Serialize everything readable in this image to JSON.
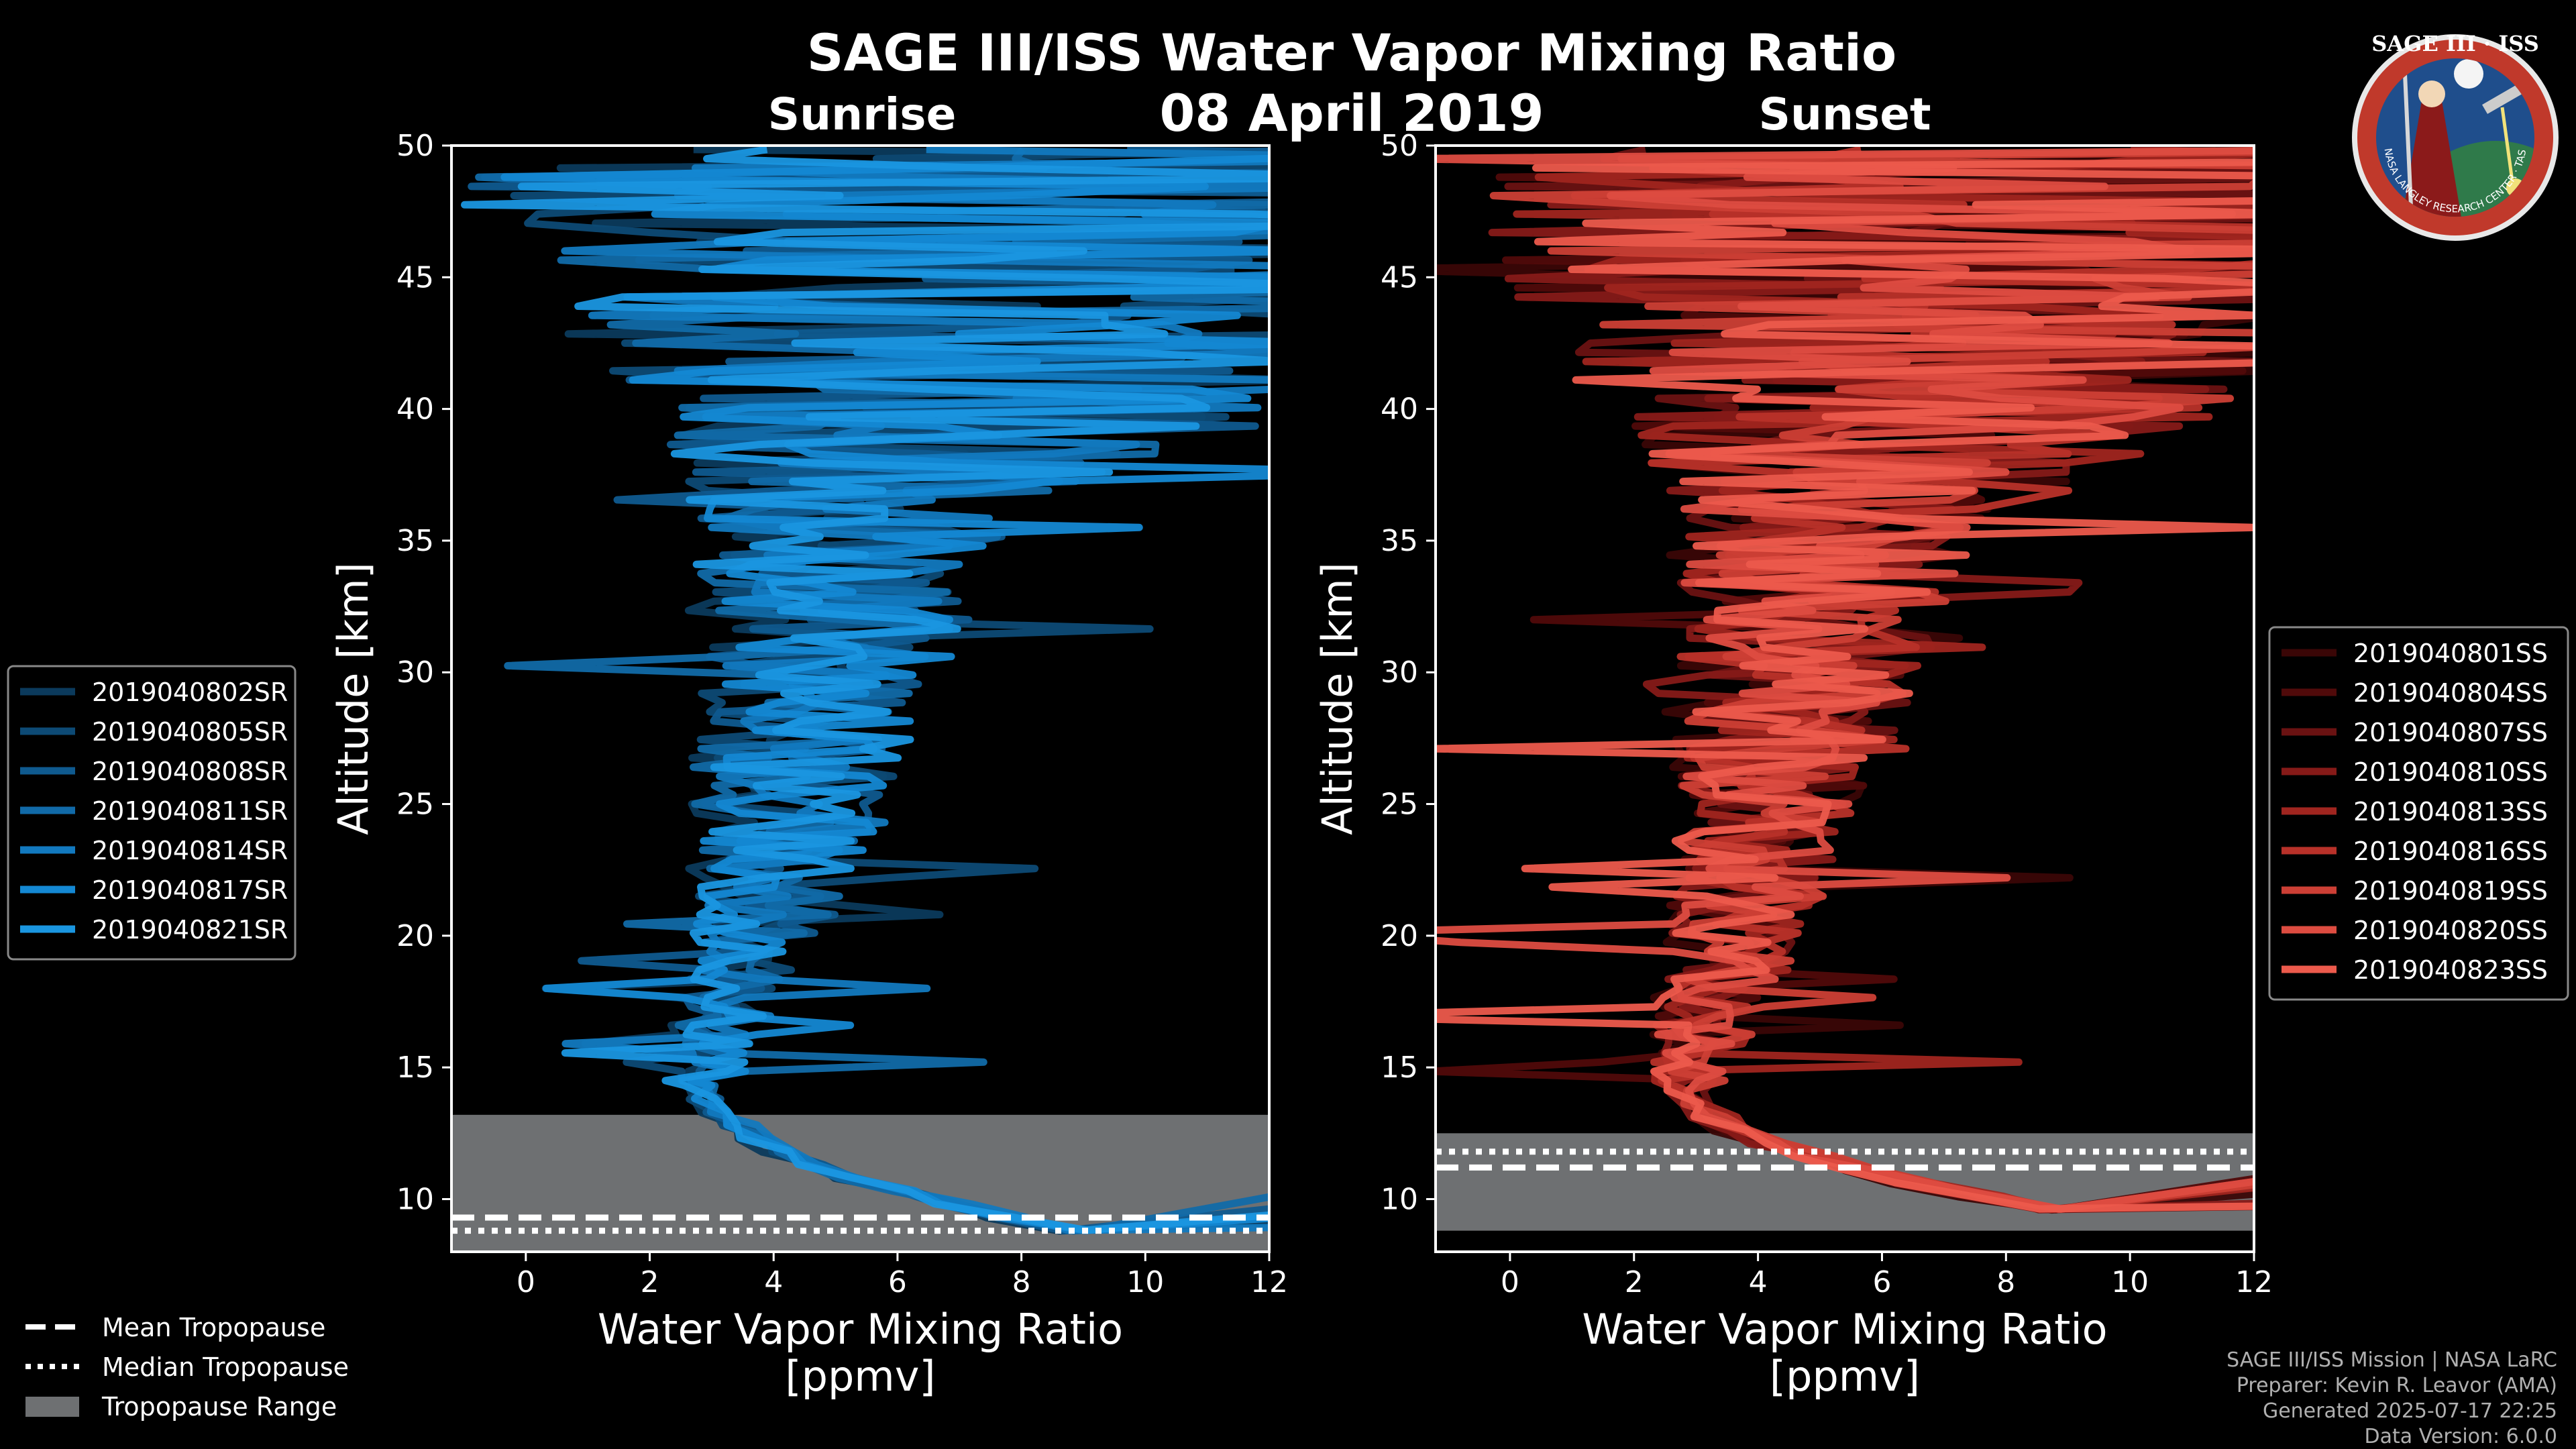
{
  "title": "SAGE III/ISS Water Vapor Mixing Ratio",
  "date": "08 April 2019",
  "logo": {
    "text": "SAGE III · ISS",
    "ring_text": "BALL · NASA LANGLEY RESEARCH CENTER · TAS-I · ESA",
    "colors": {
      "ring": "#c0392b",
      "field": "#1f4e8c"
    }
  },
  "credits": [
    "SAGE III/ISS Mission | NASA LaRC",
    "Preparer: Kevin R. Leavor (AMA)",
    "Generated 2025-07-17 22:25",
    "Data Version: 6.0.0"
  ],
  "bottom_legend": {
    "mean": "Mean Tropopause",
    "median": "Median Tropopause",
    "range": "Tropopause Range",
    "range_color": "#6e7072"
  },
  "chart_data": [
    {
      "type": "line",
      "title": "Sunrise",
      "xlabel": "Water Vapor Mixing Ratio",
      "xlabel2": "[ppmv]",
      "ylabel": "Altitude [km]",
      "xlim": [
        -1.2,
        12
      ],
      "ylim": [
        8,
        50
      ],
      "xticks": [
        0,
        2,
        4,
        6,
        8,
        10,
        12
      ],
      "yticks": [
        10,
        15,
        20,
        25,
        30,
        35,
        40,
        45,
        50
      ],
      "tropopause": {
        "range": [
          8,
          13.2
        ],
        "mean": 9.3,
        "median": 8.8
      },
      "legend_position": "outside-left",
      "series": [
        {
          "name": "2019040802SR",
          "color": "#0b3a5c",
          "min_x": 2.7,
          "seed": 11
        },
        {
          "name": "2019040805SR",
          "color": "#0d4a75",
          "min_x": 2.8,
          "seed": 23
        },
        {
          "name": "2019040808SR",
          "color": "#0f5a8f",
          "min_x": 2.9,
          "seed": 37
        },
        {
          "name": "2019040811SR",
          "color": "#116aa8",
          "min_x": 2.8,
          "seed": 41
        },
        {
          "name": "2019040814SR",
          "color": "#1279bf",
          "min_x": 3.0,
          "seed": 53
        },
        {
          "name": "2019040817SR",
          "color": "#1488d3",
          "min_x": 2.9,
          "seed": 67
        },
        {
          "name": "2019040821SR",
          "color": "#1a96e0",
          "min_x": 2.8,
          "seed": 79
        }
      ]
    },
    {
      "type": "line",
      "title": "Sunset",
      "xlabel": "Water Vapor Mixing Ratio",
      "xlabel2": "[ppmv]",
      "ylabel": "Altitude [km]",
      "xlim": [
        -1.2,
        12
      ],
      "ylim": [
        8,
        50
      ],
      "xticks": [
        0,
        2,
        4,
        6,
        8,
        10,
        12
      ],
      "yticks": [
        10,
        15,
        20,
        25,
        30,
        35,
        40,
        45,
        50
      ],
      "tropopause": {
        "range": [
          8.8,
          12.5
        ],
        "mean": 11.2,
        "median": 11.8
      },
      "legend_position": "outside-right",
      "series": [
        {
          "name": "2019040801SS",
          "color": "#3a0606",
          "min_x": 2.6,
          "seed": 13
        },
        {
          "name": "2019040804SS",
          "color": "#500a0a",
          "min_x": 2.7,
          "seed": 29
        },
        {
          "name": "2019040807SS",
          "color": "#6a1212",
          "min_x": 2.8,
          "seed": 31
        },
        {
          "name": "2019040810SS",
          "color": "#861a18",
          "min_x": 2.7,
          "seed": 43
        },
        {
          "name": "2019040813SS",
          "color": "#a0251f",
          "min_x": 2.9,
          "seed": 59
        },
        {
          "name": "2019040816SS",
          "color": "#b83129",
          "min_x": 2.8,
          "seed": 61
        },
        {
          "name": "2019040819SS",
          "color": "#cc3f35",
          "min_x": 2.9,
          "seed": 71
        },
        {
          "name": "2019040820SS",
          "color": "#dd4c41",
          "min_x": 2.8,
          "seed": 83
        },
        {
          "name": "2019040823SS",
          "color": "#ec5a4c",
          "min_x": 2.7,
          "seed": 97
        }
      ]
    }
  ]
}
